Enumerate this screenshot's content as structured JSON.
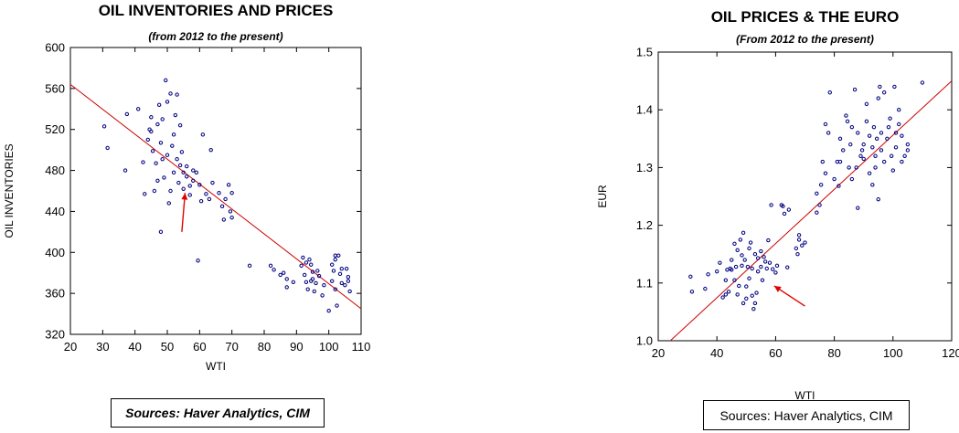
{
  "chart_data": [
    {
      "type": "scatter",
      "title": "OIL INVENTORIES AND PRICES",
      "subtitle": "(from 2012 to the present)",
      "xlabel": "WTI",
      "ylabel": "OIL INVENTORIES",
      "xlim": [
        20,
        110
      ],
      "ylim": [
        320,
        600
      ],
      "xticks": [
        20,
        30,
        40,
        50,
        60,
        70,
        80,
        90,
        100,
        110
      ],
      "yticks": [
        320,
        360,
        400,
        440,
        480,
        520,
        560,
        600
      ],
      "grid": false,
      "point_color": "#000080",
      "fit_color": "#cc0000",
      "fit_line": {
        "x": [
          20,
          110
        ],
        "y": [
          564,
          345
        ]
      },
      "arrow": {
        "from": [
          54.5,
          420
        ],
        "to": [
          55.5,
          458
        ],
        "color": "#e00000"
      },
      "points": [
        [
          30.5,
          523
        ],
        [
          31.5,
          502
        ],
        [
          37,
          480
        ],
        [
          37.5,
          535
        ],
        [
          41,
          540
        ],
        [
          42.5,
          488
        ],
        [
          43,
          457
        ],
        [
          44,
          510
        ],
        [
          44.5,
          520
        ],
        [
          45,
          532
        ],
        [
          45,
          518
        ],
        [
          45.5,
          499
        ],
        [
          46,
          460
        ],
        [
          46.5,
          487
        ],
        [
          47,
          525
        ],
        [
          47,
          470
        ],
        [
          47.5,
          544
        ],
        [
          48,
          507
        ],
        [
          48,
          420
        ],
        [
          48.5,
          491
        ],
        [
          48.5,
          530
        ],
        [
          49,
          473
        ],
        [
          49.5,
          568
        ],
        [
          50,
          547
        ],
        [
          50,
          495
        ],
        [
          50.5,
          448
        ],
        [
          51,
          460
        ],
        [
          51,
          555
        ],
        [
          51.5,
          504
        ],
        [
          52,
          515
        ],
        [
          52,
          478
        ],
        [
          52.5,
          534
        ],
        [
          53,
          554
        ],
        [
          53,
          491
        ],
        [
          53.5,
          468
        ],
        [
          54,
          524
        ],
        [
          54,
          485
        ],
        [
          54.5,
          498
        ],
        [
          55,
          462
        ],
        [
          55,
          478
        ],
        [
          56,
          474
        ],
        [
          56,
          484
        ],
        [
          57,
          465
        ],
        [
          57,
          456
        ],
        [
          58,
          480
        ],
        [
          58,
          470
        ],
        [
          59,
          478
        ],
        [
          59.5,
          392
        ],
        [
          60,
          466
        ],
        [
          60.5,
          450
        ],
        [
          61,
          515
        ],
        [
          62,
          457
        ],
        [
          63,
          452
        ],
        [
          63.5,
          500
        ],
        [
          64,
          468
        ],
        [
          66,
          458
        ],
        [
          67,
          445
        ],
        [
          67.5,
          432
        ],
        [
          68,
          452
        ],
        [
          69,
          466
        ],
        [
          69.5,
          440
        ],
        [
          70,
          458
        ],
        [
          70,
          434
        ],
        [
          75.5,
          387
        ],
        [
          82,
          387
        ],
        [
          83,
          383
        ],
        [
          85,
          378
        ],
        [
          86,
          380
        ],
        [
          87,
          374
        ],
        [
          87,
          366
        ],
        [
          89,
          371
        ],
        [
          91.5,
          387
        ],
        [
          92,
          395
        ],
        [
          92.5,
          378
        ],
        [
          93,
          390
        ],
        [
          93,
          371
        ],
        [
          93.5,
          364
        ],
        [
          94,
          393
        ],
        [
          94.5,
          388
        ],
        [
          94.5,
          372
        ],
        [
          95,
          381
        ],
        [
          95,
          374
        ],
        [
          95.5,
          362
        ],
        [
          96,
          370
        ],
        [
          96.5,
          382
        ],
        [
          97,
          377
        ],
        [
          98,
          358
        ],
        [
          98.5,
          368
        ],
        [
          100,
          343
        ],
        [
          101,
          372
        ],
        [
          101,
          388
        ],
        [
          101.5,
          382
        ],
        [
          102,
          393
        ],
        [
          102,
          397
        ],
        [
          102,
          364
        ],
        [
          102.5,
          348
        ],
        [
          103,
          397
        ],
        [
          103.5,
          379
        ],
        [
          104,
          384
        ],
        [
          104,
          370
        ],
        [
          105,
          368
        ],
        [
          105.5,
          384
        ],
        [
          106,
          376
        ],
        [
          106,
          372
        ],
        [
          106.5,
          362
        ]
      ]
    },
    {
      "type": "scatter",
      "title": "OIL PRICES & THE EURO",
      "subtitle": "(From 2012 to the present)",
      "xlabel": "WTI",
      "ylabel": "EUR",
      "xlim": [
        20,
        120
      ],
      "ylim": [
        1.0,
        1.5
      ],
      "xticks": [
        20,
        40,
        60,
        80,
        100,
        120
      ],
      "yticks": [
        1.0,
        1.1,
        1.2,
        1.3,
        1.4,
        1.5
      ],
      "grid": false,
      "point_color": "#000080",
      "fit_color": "#cc0000",
      "fit_line": {
        "x": [
          22,
          120
        ],
        "y": [
          0.99,
          1.45
        ]
      },
      "arrow": {
        "from": [
          70,
          1.06
        ],
        "to": [
          59.5,
          1.095
        ],
        "color": "#e00000"
      },
      "points": [
        [
          31,
          1.111
        ],
        [
          31.5,
          1.085
        ],
        [
          36,
          1.09
        ],
        [
          37,
          1.115
        ],
        [
          40,
          1.12
        ],
        [
          41,
          1.135
        ],
        [
          42,
          1.075
        ],
        [
          43,
          1.08
        ],
        [
          43,
          1.105
        ],
        [
          43.5,
          1.123
        ],
        [
          44,
          1.085
        ],
        [
          44.5,
          1.125
        ],
        [
          45,
          1.14
        ],
        [
          45,
          1.123
        ],
        [
          46,
          1.105
        ],
        [
          46,
          1.168
        ],
        [
          46.5,
          1.128
        ],
        [
          47,
          1.08
        ],
        [
          47,
          1.157
        ],
        [
          47.5,
          1.095
        ],
        [
          48,
          1.175
        ],
        [
          48.5,
          1.148
        ],
        [
          48.5,
          1.13
        ],
        [
          49,
          1.065
        ],
        [
          49,
          1.187
        ],
        [
          49.5,
          1.14
        ],
        [
          50,
          1.094
        ],
        [
          50,
          1.073
        ],
        [
          50.5,
          1.128
        ],
        [
          51,
          1.16
        ],
        [
          51,
          1.108
        ],
        [
          51.5,
          1.17
        ],
        [
          52,
          1.078
        ],
        [
          52,
          1.125
        ],
        [
          52.5,
          1.055
        ],
        [
          53,
          1.065
        ],
        [
          53,
          1.15
        ],
        [
          53.5,
          1.083
        ],
        [
          54,
          1.143
        ],
        [
          54,
          1.12
        ],
        [
          55,
          1.128
        ],
        [
          55,
          1.155
        ],
        [
          55.5,
          1.105
        ],
        [
          56,
          1.145
        ],
        [
          56.5,
          1.137
        ],
        [
          57,
          1.125
        ],
        [
          57.5,
          1.174
        ],
        [
          58,
          1.135
        ],
        [
          58.5,
          1.235
        ],
        [
          59,
          1.124
        ],
        [
          60,
          1.118
        ],
        [
          60.5,
          1.13
        ],
        [
          62,
          1.235
        ],
        [
          62.5,
          1.233
        ],
        [
          63,
          1.22
        ],
        [
          64,
          1.127
        ],
        [
          64.5,
          1.227
        ],
        [
          67,
          1.16
        ],
        [
          67.5,
          1.15
        ],
        [
          68,
          1.175
        ],
        [
          68,
          1.183
        ],
        [
          69,
          1.165
        ],
        [
          70,
          1.17
        ],
        [
          74,
          1.222
        ],
        [
          74,
          1.255
        ],
        [
          75,
          1.235
        ],
        [
          75.5,
          1.27
        ],
        [
          76,
          1.31
        ],
        [
          77,
          1.29
        ],
        [
          77,
          1.375
        ],
        [
          78,
          1.36
        ],
        [
          78.5,
          1.43
        ],
        [
          80,
          1.28
        ],
        [
          81,
          1.31
        ],
        [
          81.5,
          1.268
        ],
        [
          82,
          1.35
        ],
        [
          82,
          1.31
        ],
        [
          83,
          1.33
        ],
        [
          84,
          1.39
        ],
        [
          84.5,
          1.38
        ],
        [
          85,
          1.3
        ],
        [
          85.5,
          1.34
        ],
        [
          86,
          1.28
        ],
        [
          86,
          1.37
        ],
        [
          87,
          1.435
        ],
        [
          87.5,
          1.3
        ],
        [
          88,
          1.23
        ],
        [
          88,
          1.36
        ],
        [
          89,
          1.32
        ],
        [
          89.5,
          1.33
        ],
        [
          90,
          1.34
        ],
        [
          90,
          1.315
        ],
        [
          91,
          1.41
        ],
        [
          91,
          1.38
        ],
        [
          92,
          1.355
        ],
        [
          92,
          1.29
        ],
        [
          93,
          1.27
        ],
        [
          93,
          1.335
        ],
        [
          93.5,
          1.37
        ],
        [
          94,
          1.3
        ],
        [
          94,
          1.32
        ],
        [
          94.5,
          1.35
        ],
        [
          95,
          1.42
        ],
        [
          95,
          1.245
        ],
        [
          95.5,
          1.44
        ],
        [
          96,
          1.36
        ],
        [
          96,
          1.33
        ],
        [
          97,
          1.43
        ],
        [
          97,
          1.31
        ],
        [
          98,
          1.35
        ],
        [
          98.5,
          1.37
        ],
        [
          99,
          1.385
        ],
        [
          99.5,
          1.32
        ],
        [
          100,
          1.295
        ],
        [
          100.5,
          1.44
        ],
        [
          101,
          1.36
        ],
        [
          101,
          1.335
        ],
        [
          102,
          1.375
        ],
        [
          102,
          1.4
        ],
        [
          103,
          1.31
        ],
        [
          103,
          1.355
        ],
        [
          104,
          1.32
        ],
        [
          105,
          1.33
        ],
        [
          105,
          1.34
        ],
        [
          110,
          1.447
        ]
      ]
    }
  ],
  "sources_left": "Sources:  Haver Analytics, CIM",
  "sources_right": "Sources:  Haver Analytics, CIM"
}
